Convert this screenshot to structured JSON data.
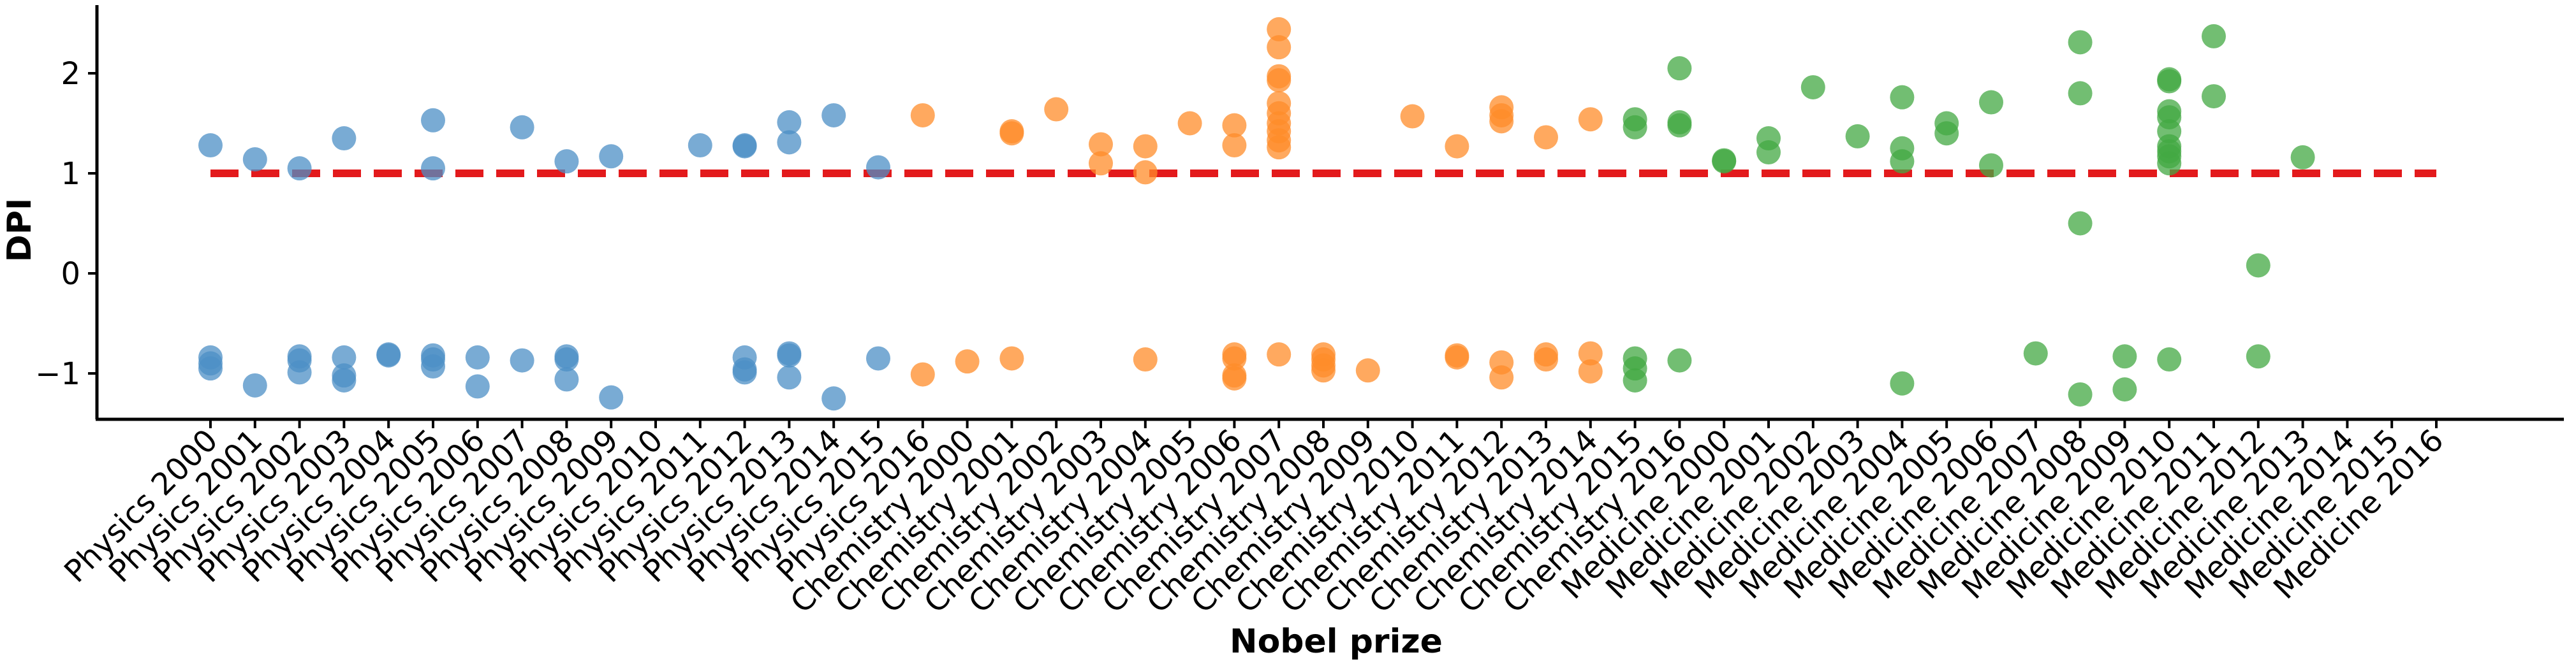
{
  "chart_data": {
    "type": "scatter",
    "xlabel": "Nobel prize",
    "ylabel": "DPI",
    "ylim": [
      -1.5,
      2.65
    ],
    "yticks": [
      -1,
      0,
      1,
      2
    ],
    "yticklabels": [
      "−1",
      "0",
      "1",
      "2"
    ],
    "reference_line": {
      "y": 1,
      "color": "#e31a1c",
      "style": "dashed"
    },
    "categories": [
      "Physics 2000",
      "Physics 2001",
      "Physics 2002",
      "Physics 2003",
      "Physics 2004",
      "Physics 2005",
      "Physics 2006",
      "Physics 2007",
      "Physics 2008",
      "Physics 2009",
      "Physics 2010",
      "Physics 2011",
      "Physics 2012",
      "Physics 2013",
      "Physics 2014",
      "Physics 2015",
      "Physics 2016",
      "Chemistry 2000",
      "Chemistry 2001",
      "Chemistry 2002",
      "Chemistry 2003",
      "Chemistry 2004",
      "Chemistry 2005",
      "Chemistry 2006",
      "Chemistry 2007",
      "Chemistry 2008",
      "Chemistry 2009",
      "Chemistry 2010",
      "Chemistry 2011",
      "Chemistry 2012",
      "Chemistry 2013",
      "Chemistry 2014",
      "Chemistry 2015",
      "Chemistry 2016",
      "Medicine 2000",
      "Medicine 2001",
      "Medicine 2002",
      "Medicine 2003",
      "Medicine 2004",
      "Medicine 2005",
      "Medicine 2006",
      "Medicine 2007",
      "Medicine 2008",
      "Medicine 2009",
      "Medicine 2010",
      "Medicine 2011",
      "Medicine 2012",
      "Medicine 2013",
      "Medicine 2014",
      "Medicine 2015",
      "Medicine 2016"
    ],
    "series": [
      {
        "color": "#4c8fc6",
        "points": [
          [
            0,
            1.28
          ],
          [
            0,
            -0.84
          ],
          [
            0,
            -0.9
          ],
          [
            0,
            -0.95
          ],
          [
            1,
            1.14
          ],
          [
            1,
            -1.12
          ],
          [
            2,
            1.05
          ],
          [
            2,
            -0.83
          ],
          [
            2,
            -0.87
          ],
          [
            2,
            -0.99
          ],
          [
            3,
            1.35
          ],
          [
            3,
            -0.84
          ],
          [
            3,
            -1.02
          ],
          [
            3,
            -1.07
          ],
          [
            4,
            -0.82
          ],
          [
            4,
            -0.81
          ],
          [
            5,
            1.53
          ],
          [
            5,
            1.05
          ],
          [
            5,
            -0.82
          ],
          [
            5,
            -0.86
          ],
          [
            5,
            -0.93
          ],
          [
            6,
            -0.84
          ],
          [
            6,
            -1.13
          ],
          [
            7,
            1.46
          ],
          [
            7,
            -0.87
          ],
          [
            8,
            1.12
          ],
          [
            8,
            -0.83
          ],
          [
            8,
            -0.86
          ],
          [
            8,
            -1.06
          ],
          [
            9,
            1.17
          ],
          [
            9,
            -1.24
          ],
          [
            11,
            1.28
          ],
          [
            12,
            1.27
          ],
          [
            12,
            1.28
          ],
          [
            12,
            -0.84
          ],
          [
            12,
            -0.96
          ],
          [
            12,
            -0.99
          ],
          [
            13,
            1.51
          ],
          [
            13,
            1.31
          ],
          [
            13,
            -0.8
          ],
          [
            13,
            -0.82
          ],
          [
            13,
            -1.04
          ],
          [
            14,
            1.58
          ],
          [
            14,
            -1.25
          ],
          [
            15,
            1.06
          ],
          [
            15,
            -0.85
          ]
        ]
      },
      {
        "color": "#ff8c2a",
        "points": [
          [
            16,
            1.58
          ],
          [
            16,
            -1.01
          ],
          [
            17,
            -0.88
          ],
          [
            18,
            1.4
          ],
          [
            18,
            1.42
          ],
          [
            18,
            -0.85
          ],
          [
            19,
            1.64
          ],
          [
            20,
            1.29
          ],
          [
            20,
            1.1
          ],
          [
            21,
            1.27
          ],
          [
            21,
            1.01
          ],
          [
            21,
            -0.86
          ],
          [
            22,
            1.5
          ],
          [
            23,
            1.48
          ],
          [
            23,
            1.28
          ],
          [
            23,
            -0.81
          ],
          [
            23,
            -0.85
          ],
          [
            23,
            -1.02
          ],
          [
            23,
            -1.05
          ],
          [
            24,
            2.44
          ],
          [
            24,
            2.26
          ],
          [
            24,
            1.97
          ],
          [
            24,
            1.93
          ],
          [
            24,
            1.7
          ],
          [
            24,
            1.6
          ],
          [
            24,
            1.5
          ],
          [
            24,
            1.42
          ],
          [
            24,
            1.33
          ],
          [
            24,
            1.26
          ],
          [
            24,
            -0.81
          ],
          [
            25,
            -0.81
          ],
          [
            25,
            -0.86
          ],
          [
            25,
            -0.92
          ],
          [
            25,
            -0.97
          ],
          [
            26,
            -0.97
          ],
          [
            27,
            1.57
          ],
          [
            28,
            1.27
          ],
          [
            28,
            -0.82
          ],
          [
            28,
            -0.84
          ],
          [
            29,
            1.66
          ],
          [
            29,
            1.58
          ],
          [
            29,
            1.52
          ],
          [
            29,
            -0.89
          ],
          [
            29,
            -1.04
          ],
          [
            30,
            1.36
          ],
          [
            30,
            -0.81
          ],
          [
            30,
            -0.86
          ],
          [
            31,
            1.54
          ],
          [
            31,
            -0.8
          ],
          [
            31,
            -0.98
          ]
        ]
      },
      {
        "color": "#43a843",
        "points": [
          [
            32,
            1.54
          ],
          [
            32,
            1.46
          ],
          [
            32,
            -0.85
          ],
          [
            32,
            -0.95
          ],
          [
            32,
            -1.07
          ],
          [
            33,
            2.05
          ],
          [
            33,
            1.51
          ],
          [
            33,
            1.48
          ],
          [
            33,
            -0.87
          ],
          [
            34,
            1.13
          ],
          [
            34,
            1.12
          ],
          [
            35,
            1.35
          ],
          [
            35,
            1.21
          ],
          [
            36,
            1.86
          ],
          [
            37,
            1.37
          ],
          [
            38,
            1.76
          ],
          [
            38,
            1.25
          ],
          [
            38,
            1.12
          ],
          [
            38,
            -1.1
          ],
          [
            39,
            1.5
          ],
          [
            39,
            1.4
          ],
          [
            40,
            1.71
          ],
          [
            40,
            1.08
          ],
          [
            41,
            -0.8
          ],
          [
            42,
            2.31
          ],
          [
            42,
            1.8
          ],
          [
            42,
            0.5
          ],
          [
            42,
            -1.21
          ],
          [
            43,
            -0.83
          ],
          [
            43,
            -1.16
          ],
          [
            44,
            1.94
          ],
          [
            44,
            1.92
          ],
          [
            44,
            1.62
          ],
          [
            44,
            1.56
          ],
          [
            44,
            1.42
          ],
          [
            44,
            1.27
          ],
          [
            44,
            1.22
          ],
          [
            44,
            1.17
          ],
          [
            44,
            1.1
          ],
          [
            44,
            -0.86
          ],
          [
            45,
            2.37
          ],
          [
            45,
            1.77
          ],
          [
            46,
            0.08
          ],
          [
            46,
            -0.83
          ],
          [
            47,
            1.16
          ]
        ]
      }
    ]
  }
}
